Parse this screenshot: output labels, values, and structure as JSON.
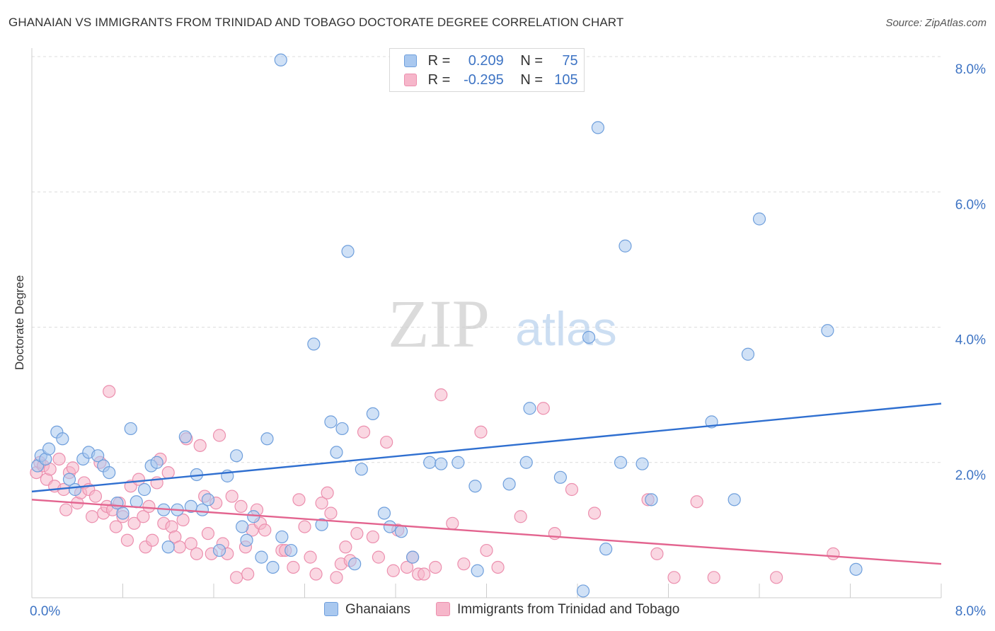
{
  "title": "GHANAIAN VS IMMIGRANTS FROM TRINIDAD AND TOBAGO DOCTORATE DEGREE CORRELATION CHART",
  "source": "Source: ZipAtlas.com",
  "watermark": {
    "zip": "ZIP",
    "atlas": "atlas"
  },
  "legend": {
    "rows": [
      {
        "r_label": "R =",
        "r_value": "0.209",
        "n_label": "N =",
        "n_value": "75"
      },
      {
        "r_label": "R =",
        "r_value": "-0.295",
        "n_label": "N =",
        "n_value": "105"
      }
    ]
  },
  "bottom_legend": {
    "series1": "Ghanaians",
    "series2": "Immigrants from Trinidad and Tobago"
  },
  "colors": {
    "blue_fill": "#a9c8ef",
    "blue_stroke": "#6f9fdc",
    "blue_line": "#2f6fd0",
    "pink_fill": "#f6b6ca",
    "pink_stroke": "#ec8fae",
    "pink_line": "#e3648f",
    "tick_text": "#3e74c4",
    "grid": "#dcdcdc"
  },
  "chart_data": {
    "type": "scatter",
    "title": "GHANAIAN VS IMMIGRANTS FROM TRINIDAD AND TOBAGO DOCTORATE DEGREE CORRELATION CHART",
    "xlabel": "",
    "ylabel": "Doctorate Degree",
    "xlim": [
      0,
      8
    ],
    "ylim": [
      0,
      8
    ],
    "x_tick_labels": [
      "0.0%",
      "8.0%"
    ],
    "y_tick_labels": [
      "2.0%",
      "4.0%",
      "6.0%",
      "8.0%"
    ],
    "y_ticks": [
      2,
      4,
      6,
      8
    ],
    "grid": true,
    "legend_position": "top-center",
    "series": [
      {
        "name": "Ghanaians",
        "R": 0.209,
        "N": 75,
        "trend": {
          "x": [
            0,
            8
          ],
          "y": [
            1.57,
            2.87
          ]
        },
        "points": [
          [
            0.05,
            1.95
          ],
          [
            0.08,
            2.1
          ],
          [
            0.12,
            2.05
          ],
          [
            0.15,
            2.2
          ],
          [
            0.22,
            2.45
          ],
          [
            0.27,
            2.35
          ],
          [
            0.33,
            1.75
          ],
          [
            0.38,
            1.6
          ],
          [
            0.45,
            2.05
          ],
          [
            0.5,
            2.15
          ],
          [
            0.58,
            2.1
          ],
          [
            0.63,
            1.95
          ],
          [
            0.68,
            1.85
          ],
          [
            0.75,
            1.4
          ],
          [
            0.8,
            1.25
          ],
          [
            0.87,
            2.5
          ],
          [
            0.92,
            1.42
          ],
          [
            0.99,
            1.6
          ],
          [
            1.05,
            1.95
          ],
          [
            1.1,
            2.0
          ],
          [
            1.16,
            1.3
          ],
          [
            1.2,
            0.75
          ],
          [
            1.28,
            1.3
          ],
          [
            1.35,
            2.38
          ],
          [
            1.4,
            1.35
          ],
          [
            1.45,
            1.82
          ],
          [
            1.5,
            1.3
          ],
          [
            1.55,
            1.45
          ],
          [
            1.65,
            0.7
          ],
          [
            1.72,
            1.8
          ],
          [
            1.8,
            2.1
          ],
          [
            1.85,
            1.05
          ],
          [
            1.89,
            0.85
          ],
          [
            1.95,
            1.2
          ],
          [
            2.02,
            0.6
          ],
          [
            2.07,
            2.35
          ],
          [
            2.12,
            0.45
          ],
          [
            2.2,
            0.9
          ],
          [
            2.28,
            0.7
          ],
          [
            2.48,
            3.75
          ],
          [
            2.55,
            1.08
          ],
          [
            2.63,
            2.6
          ],
          [
            2.68,
            2.15
          ],
          [
            2.73,
            2.5
          ],
          [
            2.78,
            5.12
          ],
          [
            2.84,
            0.5
          ],
          [
            2.9,
            1.9
          ],
          [
            3.0,
            2.72
          ],
          [
            3.1,
            1.25
          ],
          [
            3.15,
            1.05
          ],
          [
            3.25,
            0.98
          ],
          [
            3.35,
            0.6
          ],
          [
            3.5,
            2.0
          ],
          [
            3.6,
            1.98
          ],
          [
            3.75,
            2.0
          ],
          [
            3.9,
            1.65
          ],
          [
            3.92,
            0.4
          ],
          [
            4.2,
            1.68
          ],
          [
            4.35,
            2.0
          ],
          [
            4.38,
            2.8
          ],
          [
            4.65,
            1.78
          ],
          [
            4.85,
            0.1
          ],
          [
            4.9,
            3.85
          ],
          [
            4.98,
            6.95
          ],
          [
            5.05,
            0.72
          ],
          [
            5.18,
            2.0
          ],
          [
            5.22,
            5.2
          ],
          [
            5.37,
            1.98
          ],
          [
            5.45,
            1.45
          ],
          [
            5.98,
            2.6
          ],
          [
            6.18,
            1.45
          ],
          [
            6.3,
            3.6
          ],
          [
            6.4,
            5.6
          ],
          [
            7.0,
            3.95
          ],
          [
            7.25,
            0.42
          ],
          [
            2.19,
            7.95
          ]
        ]
      },
      {
        "name": "Immigrants from Trinidad and Tobago",
        "R": -0.295,
        "N": 105,
        "trend": {
          "x": [
            0,
            8
          ],
          "y": [
            1.45,
            0.5
          ]
        },
        "points": [
          [
            0.04,
            1.85
          ],
          [
            0.07,
            2.0
          ],
          [
            0.1,
            1.95
          ],
          [
            0.13,
            1.75
          ],
          [
            0.16,
            1.9
          ],
          [
            0.2,
            1.65
          ],
          [
            0.24,
            2.05
          ],
          [
            0.28,
            1.6
          ],
          [
            0.3,
            1.3
          ],
          [
            0.33,
            1.85
          ],
          [
            0.36,
            1.92
          ],
          [
            0.4,
            1.4
          ],
          [
            0.43,
            1.55
          ],
          [
            0.46,
            1.7
          ],
          [
            0.5,
            1.6
          ],
          [
            0.53,
            1.2
          ],
          [
            0.56,
            1.5
          ],
          [
            0.6,
            2.0
          ],
          [
            0.63,
            1.25
          ],
          [
            0.66,
            1.35
          ],
          [
            0.68,
            3.05
          ],
          [
            0.71,
            1.3
          ],
          [
            0.74,
            1.05
          ],
          [
            0.77,
            1.4
          ],
          [
            0.8,
            1.2
          ],
          [
            0.84,
            0.85
          ],
          [
            0.87,
            1.65
          ],
          [
            0.9,
            1.1
          ],
          [
            0.94,
            1.75
          ],
          [
            0.98,
            1.2
          ],
          [
            1.0,
            0.75
          ],
          [
            1.03,
            1.35
          ],
          [
            1.06,
            0.85
          ],
          [
            1.1,
            1.7
          ],
          [
            1.13,
            2.05
          ],
          [
            1.16,
            1.1
          ],
          [
            1.2,
            1.85
          ],
          [
            1.23,
            1.05
          ],
          [
            1.26,
            0.9
          ],
          [
            1.3,
            0.75
          ],
          [
            1.33,
            1.15
          ],
          [
            1.36,
            2.35
          ],
          [
            1.4,
            0.8
          ],
          [
            1.45,
            0.65
          ],
          [
            1.48,
            2.25
          ],
          [
            1.52,
            1.5
          ],
          [
            1.55,
            0.95
          ],
          [
            1.58,
            0.65
          ],
          [
            1.62,
            1.4
          ],
          [
            1.65,
            2.4
          ],
          [
            1.68,
            0.8
          ],
          [
            1.72,
            0.65
          ],
          [
            1.76,
            1.5
          ],
          [
            1.8,
            0.3
          ],
          [
            1.84,
            1.35
          ],
          [
            1.88,
            0.75
          ],
          [
            1.9,
            0.35
          ],
          [
            1.94,
            1.0
          ],
          [
            1.98,
            1.3
          ],
          [
            2.01,
            1.1
          ],
          [
            2.05,
            1.0
          ],
          [
            2.2,
            0.7
          ],
          [
            2.23,
            0.7
          ],
          [
            2.3,
            0.45
          ],
          [
            2.35,
            1.45
          ],
          [
            2.4,
            1.05
          ],
          [
            2.45,
            0.6
          ],
          [
            2.5,
            0.35
          ],
          [
            2.55,
            1.4
          ],
          [
            2.6,
            1.55
          ],
          [
            2.63,
            1.25
          ],
          [
            2.68,
            0.3
          ],
          [
            2.72,
            0.5
          ],
          [
            2.76,
            0.75
          ],
          [
            2.8,
            0.55
          ],
          [
            2.86,
            0.95
          ],
          [
            2.92,
            2.45
          ],
          [
            3.0,
            0.9
          ],
          [
            3.05,
            0.6
          ],
          [
            3.12,
            2.3
          ],
          [
            3.18,
            0.4
          ],
          [
            3.22,
            1.0
          ],
          [
            3.3,
            0.45
          ],
          [
            3.35,
            0.6
          ],
          [
            3.4,
            0.35
          ],
          [
            3.45,
            0.35
          ],
          [
            3.55,
            0.45
          ],
          [
            3.6,
            3.0
          ],
          [
            3.7,
            1.1
          ],
          [
            3.8,
            0.5
          ],
          [
            3.95,
            2.45
          ],
          [
            4.0,
            0.7
          ],
          [
            4.1,
            0.45
          ],
          [
            4.3,
            1.2
          ],
          [
            4.5,
            2.8
          ],
          [
            4.6,
            0.95
          ],
          [
            4.75,
            1.6
          ],
          [
            4.95,
            1.25
          ],
          [
            5.42,
            1.45
          ],
          [
            5.5,
            0.65
          ],
          [
            5.65,
            0.3
          ],
          [
            5.85,
            1.42
          ],
          [
            6.0,
            0.3
          ],
          [
            6.55,
            0.3
          ],
          [
            7.05,
            0.65
          ]
        ]
      }
    ]
  }
}
